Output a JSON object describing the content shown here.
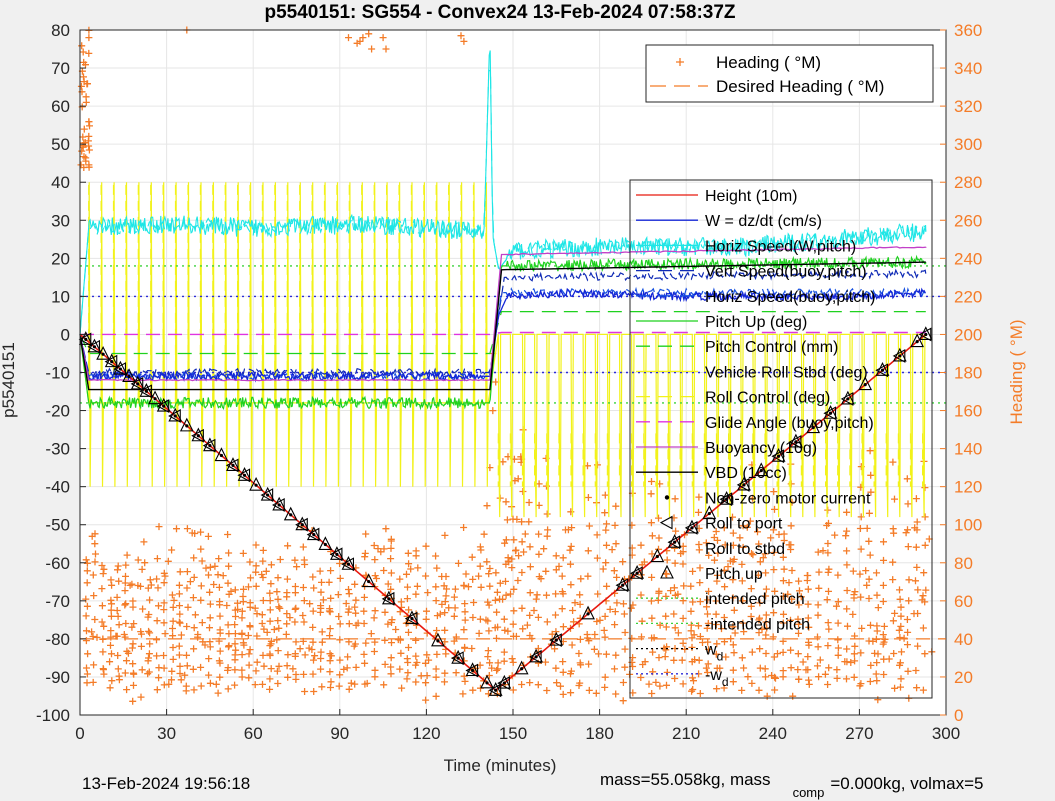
{
  "figure": {
    "title": "p5540151: SG554 - Convex24 13-Feb-2024 07:58:37Z",
    "footer_date": "13-Feb-2024 19:56:18",
    "footer_mass_a": "mass=55.058kg, mass",
    "footer_mass_sub": "comp",
    "footer_mass_b": "=0.000kg, volmax=5"
  },
  "chart_data": {
    "type": "line",
    "title": "p5540151: SG554 - Convex24 13-Feb-2024 07:58:37Z",
    "xlabel": "Time (minutes)",
    "ylabel_left": "p5540151",
    "ylabel_right": "Heading (  °M)",
    "xlim": [
      0,
      300
    ],
    "ylim_left": [
      -100,
      80
    ],
    "ylim_right": [
      0,
      360
    ],
    "x_ticks": [
      0,
      30,
      60,
      90,
      120,
      150,
      180,
      210,
      240,
      270,
      300
    ],
    "y_ticks_left": [
      -100,
      -90,
      -80,
      -70,
      -60,
      -50,
      -40,
      -30,
      -20,
      -10,
      0,
      10,
      20,
      30,
      40,
      50,
      60,
      70,
      80
    ],
    "y_ticks_right": [
      0,
      20,
      40,
      60,
      80,
      100,
      120,
      140,
      160,
      180,
      200,
      220,
      240,
      260,
      280,
      300,
      320,
      340,
      360
    ],
    "grid": true,
    "legend_heading_position": "top-right",
    "legend_main_position": "right",
    "colors": {
      "depth": "#e8190f",
      "w": "#1426d6",
      "horiz_speed_w": "#1ee6e6",
      "vert_speed": "#0f2ab5",
      "horiz_speed_buoy": "#1650e0",
      "pitch_control": "#1fd11f",
      "roll_control": "#f2f21a",
      "glide_angle": "#e034e0",
      "buoyancy": "#c240c8",
      "vbd": "#000000",
      "heading": "#f47c28",
      "intended_pitch": "#3cd23c",
      "w_d": "#2b2bd8",
      "axis_right": "#f47c28"
    },
    "legend_heading": [
      {
        "label": "Heading (  °M)",
        "style": "plus"
      },
      {
        "label": "Desired Heading (   °M)",
        "style": "dash"
      }
    ],
    "legend_main": [
      {
        "label": "Height (10m)",
        "style": "solid",
        "color": "#e8190f"
      },
      {
        "label": "W = dz/dt (cm/s)",
        "style": "solid",
        "color": "#1426d6"
      },
      {
        "label": "Horiz Speed(W,pitch)",
        "style": "solid",
        "color": "#1ee6e6"
      },
      {
        "label": "Vert Speed(buoy,pitch)",
        "style": "dash",
        "color": "#0f2ab5"
      },
      {
        "label": "Horiz Speed(buoy,pitch)",
        "style": "dash",
        "color": "#1650e0"
      },
      {
        "label": "Pitch Up (deg)",
        "style": "solid",
        "color": "#1fd11f"
      },
      {
        "label": "Pitch Control (mm)",
        "style": "dash",
        "color": "#1fd11f"
      },
      {
        "label": "Vehicle Roll Stbd (deg)",
        "style": "solid",
        "color": "#f2f21a"
      },
      {
        "label": "Roll Control (deg)",
        "style": "dash",
        "color": "#f2f21a"
      },
      {
        "label": "Glide Angle (buoy,pitch)",
        "style": "dash",
        "color": "#e034e0"
      },
      {
        "label": "Buoyancy (10g)",
        "style": "solid",
        "color": "#c240c8"
      },
      {
        "label": "VBD (10cc)",
        "style": "solid",
        "color": "#000000"
      },
      {
        "label": "Non-zero motor current",
        "style": "dot",
        "color": "#000000"
      },
      {
        "label": "Roll to port",
        "style": "tri-left",
        "color": "#000000"
      },
      {
        "label": "Roll to stbd",
        "style": "none",
        "color": "#000000"
      },
      {
        "label": "Pitch up",
        "style": "tri-up",
        "color": "#000000"
      },
      {
        "label": "intended pitch",
        "style": "dotted",
        "color": "#3cd23c"
      },
      {
        "label": "-intended pitch",
        "style": "dotted",
        "color": "#3cd23c"
      },
      {
        "label": "w",
        "sub": "d",
        "style": "dotted",
        "color": "#000000"
      },
      {
        "label": "-w",
        "sub": "d",
        "style": "dotted",
        "color": "#2b2bd8"
      }
    ],
    "series": [
      {
        "name": "Height (10m)",
        "x": [
          0,
          144,
          293
        ],
        "y": [
          0,
          -93.5,
          0
        ]
      },
      {
        "name": "W = dz/dt (cm/s)",
        "x": [
          0,
          3,
          142,
          145,
          148,
          170,
          200,
          240,
          270,
          293
        ],
        "y": [
          0,
          -11,
          -11,
          5,
          10,
          11,
          10,
          10,
          10,
          11
        ]
      },
      {
        "name": "Horiz Speed(W,pitch)",
        "x": [
          0,
          3,
          30,
          60,
          100,
          140,
          142,
          143,
          145,
          150,
          180,
          230,
          293
        ],
        "y": [
          0,
          28,
          29,
          28,
          29,
          27,
          80,
          26,
          17,
          22,
          23,
          23,
          27
        ]
      },
      {
        "name": "Vert Speed(buoy,pitch)",
        "x": [
          0,
          3,
          142,
          147,
          293
        ],
        "y": [
          0,
          -10,
          -10,
          15,
          16
        ]
      },
      {
        "name": "Horiz Speed(buoy,pitch)",
        "x": [
          0,
          3,
          142,
          146,
          293
        ],
        "y": [
          0,
          -11,
          -11,
          11,
          11
        ]
      },
      {
        "name": "Pitch Up (deg)",
        "x": [
          0,
          3,
          142,
          146,
          293
        ],
        "y": [
          0,
          -18,
          -18,
          18,
          19
        ]
      },
      {
        "name": "Pitch Control (mm)",
        "x": [
          0,
          3,
          142,
          146,
          293
        ],
        "y": [
          0,
          -5,
          -5,
          6,
          6
        ]
      },
      {
        "name": "Glide Angle (buoy,pitch)",
        "x": [
          0,
          3,
          142,
          146,
          293
        ],
        "y": [
          0,
          0,
          0,
          0.5,
          0.5
        ]
      },
      {
        "name": "Buoyancy (10g)",
        "x": [
          0,
          3,
          142,
          146,
          293
        ],
        "y": [
          0,
          -12,
          -12,
          21,
          23
        ]
      },
      {
        "name": "VBD (10cc)",
        "x": [
          0,
          3,
          142,
          146,
          293
        ],
        "y": [
          0,
          -14.5,
          -14.5,
          17,
          19
        ]
      },
      {
        "name": "Desired Heading",
        "x": [
          0,
          300
        ],
        "y_right": [
          40,
          40
        ]
      }
    ],
    "reference_lines": [
      {
        "name": "intended pitch",
        "y": 18
      },
      {
        "name": "-intended pitch",
        "y": -18
      },
      {
        "name": "w_d",
        "y": 10
      },
      {
        "name": "-w_d",
        "y": -10
      }
    ],
    "markers": {
      "pitch_up_and_roll_x": [
        2,
        5,
        8,
        11,
        14,
        17,
        20,
        23,
        26,
        29,
        33,
        37,
        41,
        45,
        49,
        53,
        57,
        61,
        65,
        69,
        73,
        77,
        81,
        85,
        89,
        93,
        100,
        107,
        115,
        124,
        131,
        136,
        141,
        144,
        147,
        153,
        158,
        165,
        176,
        188,
        193,
        200,
        206,
        212,
        218,
        224,
        230,
        236,
        242,
        248,
        254,
        260,
        266,
        272,
        278,
        284,
        290,
        293
      ]
    }
  }
}
